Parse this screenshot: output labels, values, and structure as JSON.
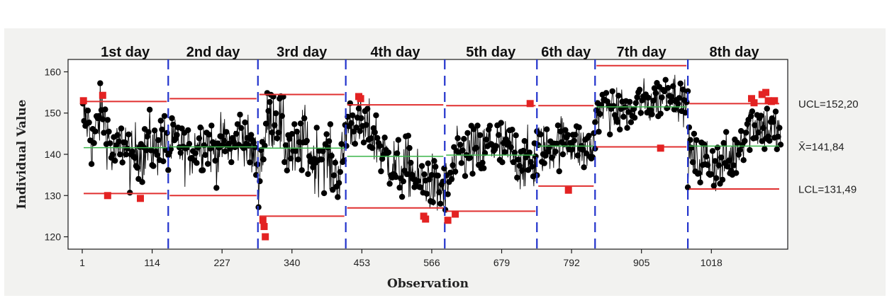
{
  "chart_data": {
    "type": "scatter",
    "subtype": "individuals control chart",
    "xlabel": "Observation",
    "ylabel": "Individual Value",
    "xlim": [
      1,
      1130
    ],
    "ylim": [
      117,
      163
    ],
    "x_ticks": [
      1,
      114,
      227,
      340,
      453,
      566,
      679,
      792,
      905,
      1018
    ],
    "y_ticks": [
      120,
      130,
      140,
      150,
      160
    ],
    "grid": false,
    "series_colors": {
      "points": "#000000",
      "out_of_control": "#e32222",
      "limits": "#e03030",
      "center": "#3ab54a",
      "stage_divider": "#2233cc"
    },
    "stages": [
      {
        "label": "1st day",
        "start": 1,
        "end": 140,
        "ucl": 152.8,
        "lcl": 130.5,
        "mean": 141.6
      },
      {
        "label": "2nd day",
        "start": 140,
        "end": 285,
        "ucl": 153.5,
        "lcl": 130.0,
        "mean": 141.8
      },
      {
        "label": "3rd day",
        "start": 285,
        "end": 427,
        "ucl": 154.5,
        "lcl": 125.0,
        "mean": 141.5
      },
      {
        "label": "4th day",
        "start": 427,
        "end": 587,
        "ucl": 152.0,
        "lcl": 127.0,
        "mean": 139.5
      },
      {
        "label": "5th day",
        "start": 587,
        "end": 736,
        "ucl": 151.8,
        "lcl": 126.2,
        "mean": 139.8
      },
      {
        "label": "6th day",
        "start": 736,
        "end": 830,
        "ucl": 151.8,
        "lcl": 132.3,
        "mean": 142.0
      },
      {
        "label": "7th day",
        "start": 830,
        "end": 980,
        "ucl": 161.5,
        "lcl": 141.8,
        "mean": 151.5
      },
      {
        "label": "8th day",
        "start": 980,
        "end": 1130,
        "ucl": 152.3,
        "lcl": 131.6,
        "mean": 142.0
      }
    ],
    "reference_labels": [
      {
        "text": "UCL=152,20",
        "value": 152.2
      },
      {
        "text": "X̄=141,84",
        "value": 141.84
      },
      {
        "text": "LCL=131,49",
        "value": 131.49
      }
    ],
    "out_of_control_points": [
      {
        "x": 3,
        "y": 153
      },
      {
        "x": 34,
        "y": 154.3
      },
      {
        "x": 42,
        "y": 130
      },
      {
        "x": 95,
        "y": 129.3
      },
      {
        "x": 293,
        "y": 124
      },
      {
        "x": 295,
        "y": 122.5
      },
      {
        "x": 297,
        "y": 120
      },
      {
        "x": 448,
        "y": 154
      },
      {
        "x": 451,
        "y": 153.5
      },
      {
        "x": 553,
        "y": 125
      },
      {
        "x": 556,
        "y": 124.3
      },
      {
        "x": 592,
        "y": 124
      },
      {
        "x": 604,
        "y": 125.5
      },
      {
        "x": 725,
        "y": 152.3
      },
      {
        "x": 787,
        "y": 131.3
      },
      {
        "x": 936,
        "y": 141.5
      },
      {
        "x": 1083,
        "y": 153.5
      },
      {
        "x": 1087,
        "y": 152.5
      },
      {
        "x": 1100,
        "y": 154.5
      },
      {
        "x": 1106,
        "y": 155
      },
      {
        "x": 1110,
        "y": 153
      },
      {
        "x": 1115,
        "y": 152.8
      },
      {
        "x": 1120,
        "y": 153
      }
    ],
    "segments": [
      {
        "start": 1,
        "end": 140,
        "points": [
          [
            1,
            150
          ],
          [
            10,
            148
          ],
          [
            18,
            142
          ],
          [
            26,
            147
          ],
          [
            34,
            151
          ],
          [
            42,
            145
          ],
          [
            50,
            139
          ],
          [
            60,
            141
          ],
          [
            70,
            144
          ],
          [
            80,
            137
          ],
          [
            90,
            142
          ],
          [
            100,
            139
          ],
          [
            110,
            143
          ],
          [
            120,
            141
          ],
          [
            130,
            144
          ],
          [
            140,
            140
          ]
        ],
        "spread": 4.5
      },
      {
        "start": 140,
        "end": 285,
        "points": [
          [
            140,
            141
          ],
          [
            155,
            143
          ],
          [
            170,
            140
          ],
          [
            185,
            142
          ],
          [
            200,
            144
          ],
          [
            215,
            140
          ],
          [
            230,
            143
          ],
          [
            245,
            142
          ],
          [
            260,
            146
          ],
          [
            275,
            140
          ],
          [
            285,
            138
          ]
        ],
        "spread": 4.2
      },
      {
        "start": 285,
        "end": 427,
        "points": [
          [
            285,
            135
          ],
          [
            300,
            147
          ],
          [
            315,
            150
          ],
          [
            330,
            142
          ],
          [
            345,
            139
          ],
          [
            360,
            144
          ],
          [
            375,
            138
          ],
          [
            390,
            141
          ],
          [
            405,
            136
          ],
          [
            418,
            135
          ],
          [
            427,
            145
          ]
        ],
        "spread": 5.0
      },
      {
        "start": 427,
        "end": 587,
        "points": [
          [
            427,
            147
          ],
          [
            440,
            148
          ],
          [
            455,
            146
          ],
          [
            470,
            145
          ],
          [
            485,
            141
          ],
          [
            500,
            138
          ],
          [
            515,
            136
          ],
          [
            530,
            137
          ],
          [
            545,
            133
          ],
          [
            560,
            134
          ],
          [
            575,
            131
          ],
          [
            587,
            132
          ]
        ],
        "spread": 4.5
      },
      {
        "start": 587,
        "end": 736,
        "points": [
          [
            587,
            130
          ],
          [
            600,
            136
          ],
          [
            615,
            140
          ],
          [
            630,
            141
          ],
          [
            645,
            139
          ],
          [
            660,
            143
          ],
          [
            675,
            142
          ],
          [
            690,
            141
          ],
          [
            705,
            139
          ],
          [
            720,
            138
          ],
          [
            736,
            138
          ]
        ],
        "spread": 4.6
      },
      {
        "start": 736,
        "end": 830,
        "points": [
          [
            736,
            143
          ],
          [
            750,
            141
          ],
          [
            765,
            142
          ],
          [
            780,
            144
          ],
          [
            795,
            143
          ],
          [
            810,
            141
          ],
          [
            830,
            142
          ]
        ],
        "spread": 3.8
      },
      {
        "start": 830,
        "end": 980,
        "points": [
          [
            830,
            150
          ],
          [
            845,
            152
          ],
          [
            860,
            150
          ],
          [
            875,
            151
          ],
          [
            890,
            150
          ],
          [
            905,
            153
          ],
          [
            920,
            152
          ],
          [
            935,
            154
          ],
          [
            950,
            156
          ],
          [
            965,
            154
          ],
          [
            980,
            152
          ]
        ],
        "spread": 3.2
      },
      {
        "start": 980,
        "end": 1130,
        "points": [
          [
            980,
            140
          ],
          [
            995,
            138
          ],
          [
            1010,
            139
          ],
          [
            1025,
            137
          ],
          [
            1040,
            138
          ],
          [
            1055,
            140
          ],
          [
            1070,
            145
          ],
          [
            1085,
            148
          ],
          [
            1100,
            147
          ],
          [
            1115,
            146
          ],
          [
            1130,
            145
          ]
        ],
        "spread": 4.0
      }
    ]
  }
}
